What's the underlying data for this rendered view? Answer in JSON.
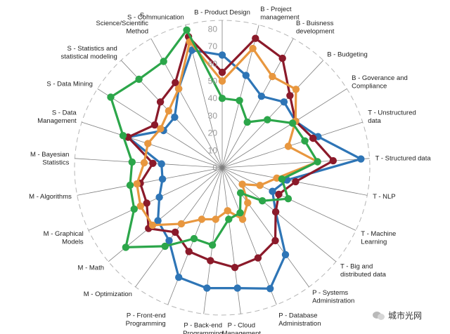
{
  "chart_data": {
    "type": "radar",
    "title": "",
    "axes": [
      "B - Product Design",
      "B - Project management",
      "B - Buisness development",
      "B - Budgeting",
      "B - Goverance and Compliance",
      "T - Unstructured data",
      "T - Structured data",
      "T - NLP",
      "T - Machine Learning",
      "T - Big and distributed data",
      "P - Systems Administration",
      "P - Database Administration",
      "P - Cloud Management",
      "P - Back-end Programming",
      "P - Front-end Programming",
      "M - Optimization",
      "M - Math",
      "M - Graphical Models",
      "M - Algorithms",
      "M - Bayesian Statistics",
      "S - Data Management",
      "S - Data Mining",
      "S - Statistics and statistical modeling",
      "S - Science/Scientific Method",
      "S - Communication"
    ],
    "axis_label_lines": [
      [
        "B - Product Design"
      ],
      [
        "B - Project",
        "management"
      ],
      [
        "B - Buisness",
        "development"
      ],
      [
        "B - Budgeting"
      ],
      [
        "B - Goverance and",
        "Compliance"
      ],
      [
        "T - Unstructured",
        "data"
      ],
      [
        "T - Structured data"
      ],
      [
        "T - NLP"
      ],
      [
        "T - Machine",
        "Learning"
      ],
      [
        "T - Big and",
        "distributed data"
      ],
      [
        "P - Systems",
        "Administration"
      ],
      [
        "P - Database",
        "Administration"
      ],
      [
        "P - Cloud",
        "Management"
      ],
      [
        "P - Back-end",
        "Programming"
      ],
      [
        "P - Front-end",
        "Programming"
      ],
      [
        "M - Optimization"
      ],
      [
        "M - Math"
      ],
      [
        "M - Graphical",
        "Models"
      ],
      [
        "M - Algorithms"
      ],
      [
        "M - Bayesian",
        "Statistics"
      ],
      [
        "S - Data",
        "Management"
      ],
      [
        "S - Data Mining"
      ],
      [
        "S - Statistics and",
        "statistical modeling"
      ],
      [
        "S -",
        "Science/Scientific",
        "Method"
      ],
      [
        "S - Communication"
      ]
    ],
    "r_ticks": [
      0,
      10,
      20,
      30,
      40,
      50,
      60,
      70,
      80
    ],
    "r_range": [
      0,
      85
    ],
    "grid": true,
    "legend": "none",
    "series": [
      {
        "color": "#2e75b6",
        "values": [
          65,
          55,
          47,
          52,
          50,
          58,
          80,
          38,
          32,
          40,
          62,
          75,
          70,
          70,
          68,
          52,
          48,
          40,
          35,
          35,
          57,
          40,
          40,
          52,
          70
        ]
      },
      {
        "color": "#8b1a2a",
        "values": [
          55,
          77,
          72,
          57,
          50,
          55,
          64,
          43,
          36,
          40,
          52,
          56,
          58,
          54,
          52,
          46,
          55,
          48,
          48,
          40,
          57,
          46,
          52,
          56,
          78
        ]
      },
      {
        "color": "#e8973f",
        "values": [
          50,
          71,
          60,
          62,
          50,
          40,
          55,
          32,
          24,
          15,
          25,
          32,
          25,
          30,
          32,
          40,
          52,
          52,
          50,
          45,
          45,
          42,
          45,
          52,
          75
        ]
      },
      {
        "color": "#2ca64a",
        "values": [
          40,
          40,
          30,
          38,
          48,
          50,
          55,
          35,
          42,
          30,
          18,
          28,
          30,
          45,
          44,
          56,
          72,
          56,
          54,
          52,
          60,
          76,
          70,
          70,
          82
        ]
      }
    ]
  },
  "watermark": {
    "text": "城市光网",
    "icon": "wechat-icon"
  }
}
